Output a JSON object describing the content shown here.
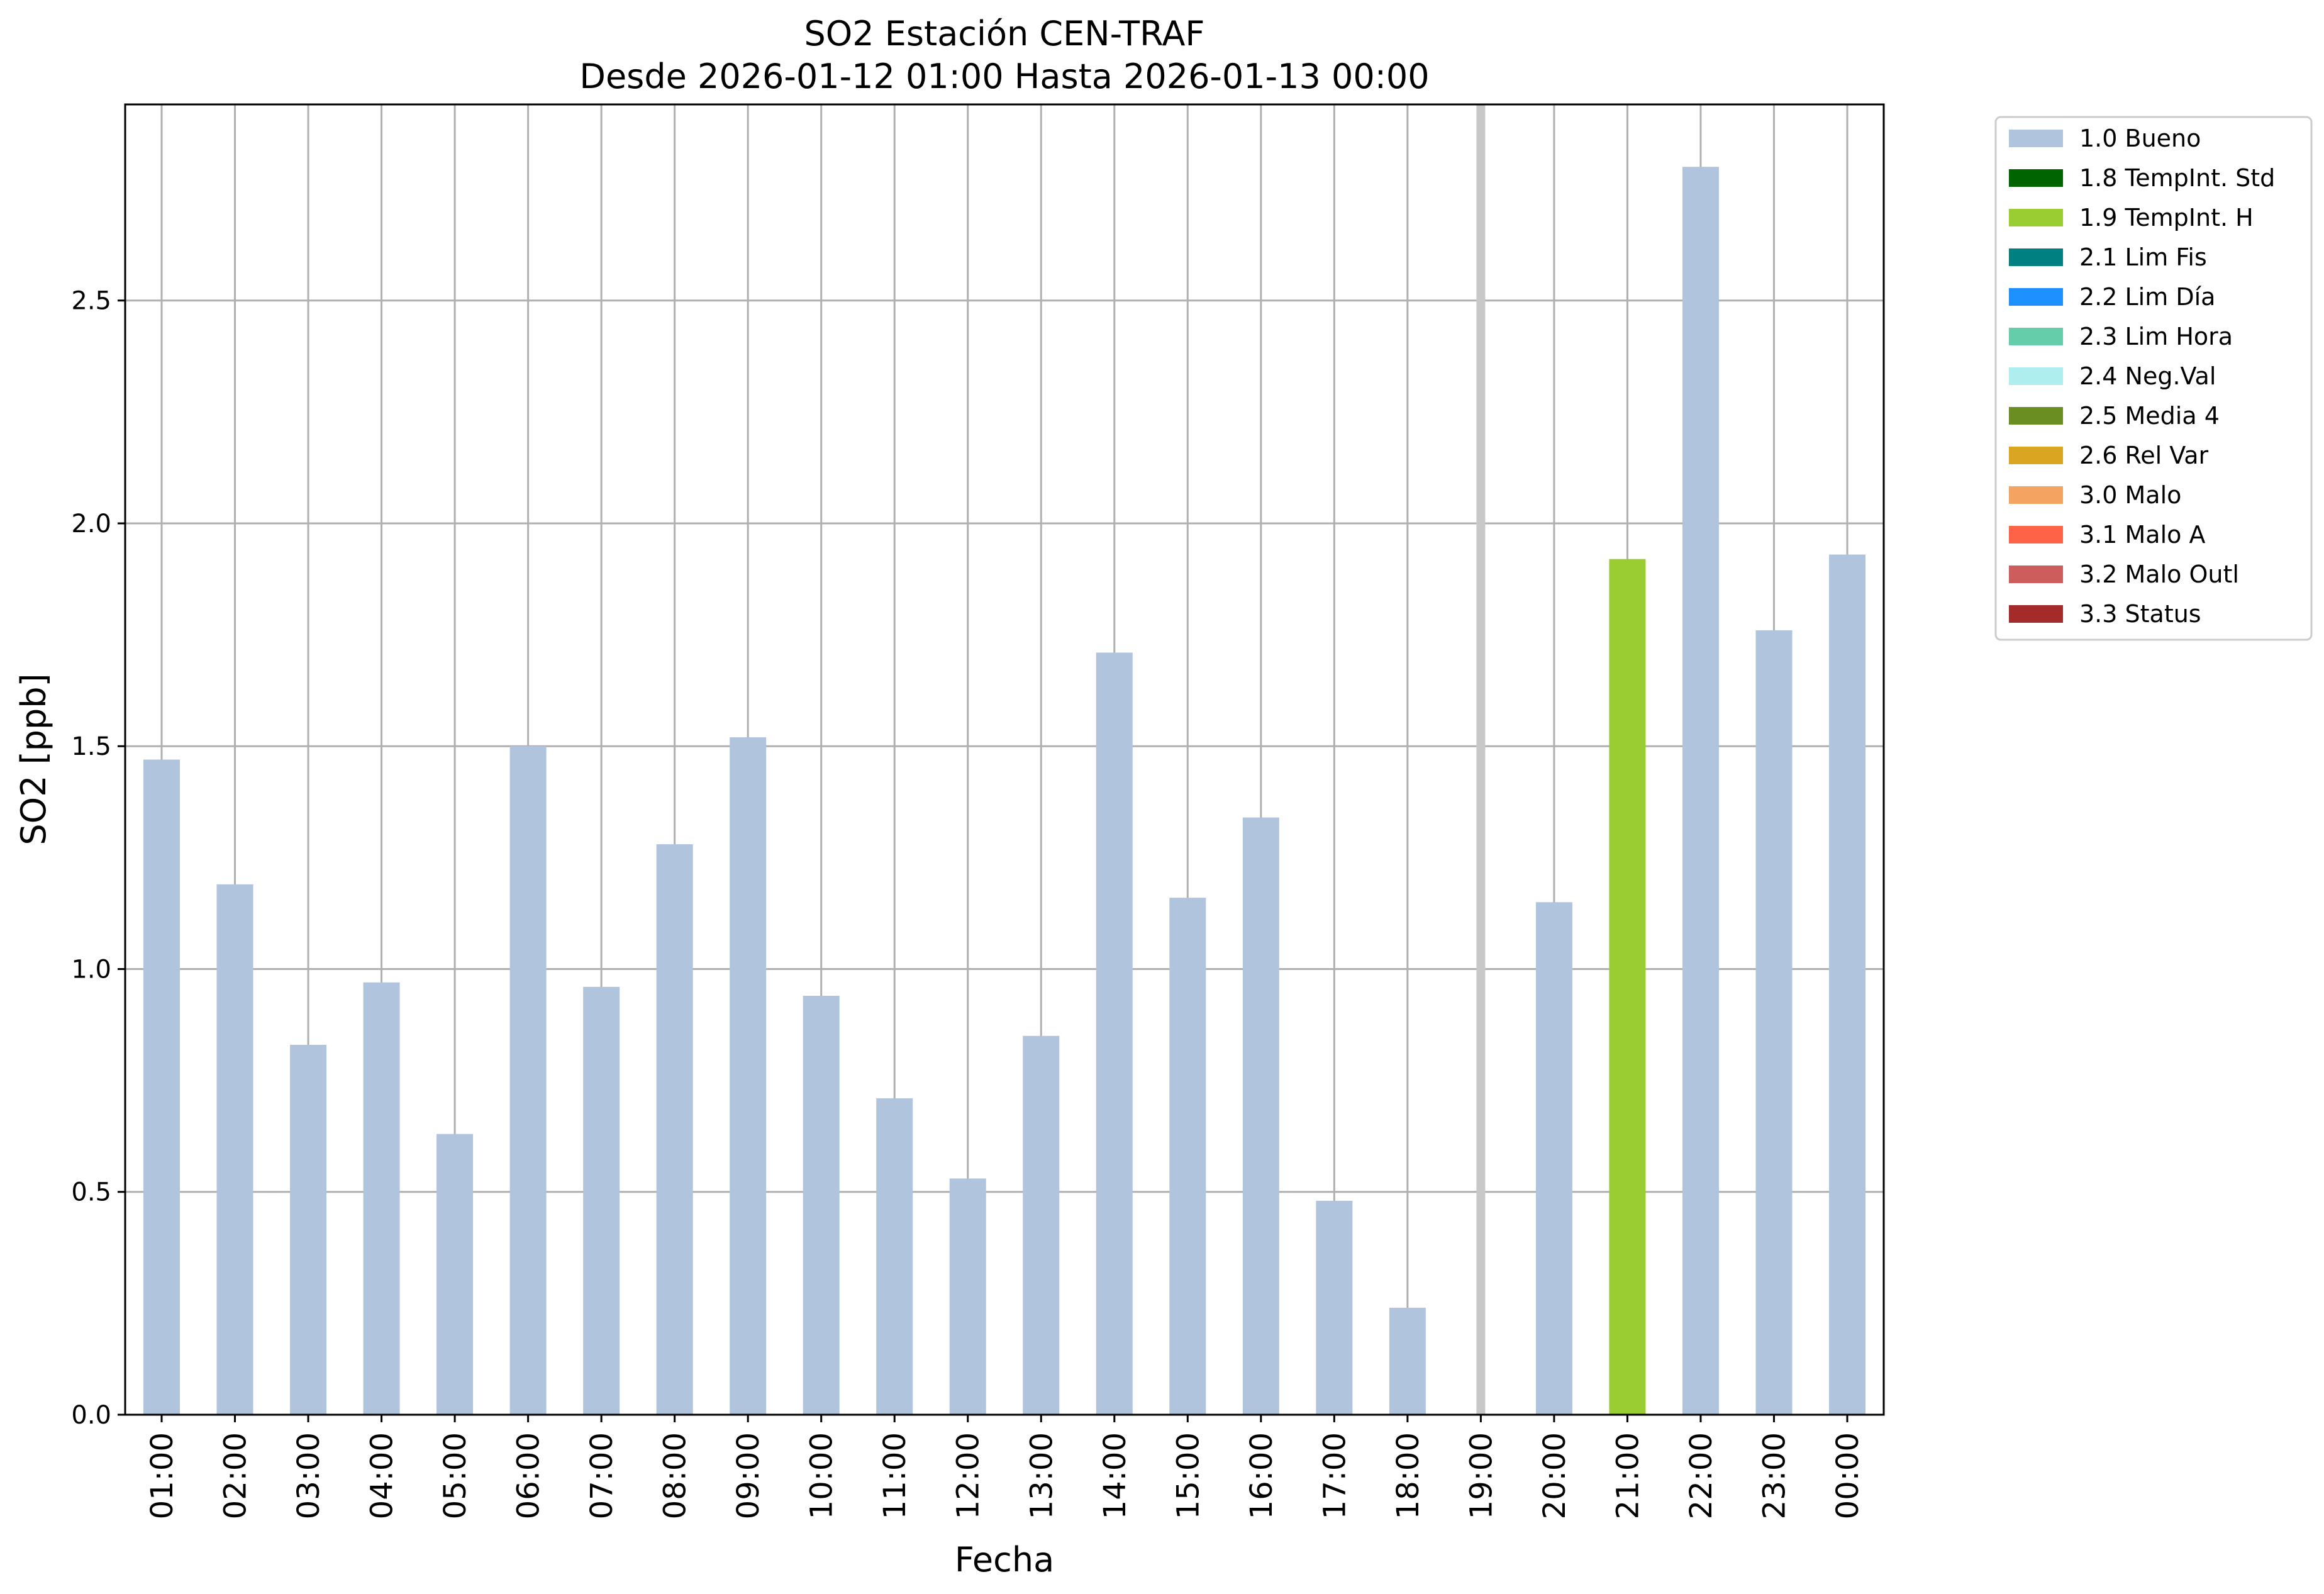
{
  "chart_data": {
    "type": "bar",
    "title": "SO2 Estación CEN-TRAF",
    "subtitle": "Desde 2026-01-12 01:00 Hasta 2026-01-13 00:00",
    "xlabel": "Fecha",
    "ylabel": "SO2 [ppb]",
    "ylim": [
      0,
      2.94
    ],
    "yticks": [
      "0.0",
      "0.5",
      "1.0",
      "1.5",
      "2.0",
      "2.5"
    ],
    "grid": true,
    "legend_position": "outside-right",
    "categories": [
      "01:00",
      "02:00",
      "03:00",
      "04:00",
      "05:00",
      "06:00",
      "07:00",
      "08:00",
      "09:00",
      "10:00",
      "11:00",
      "12:00",
      "13:00",
      "14:00",
      "15:00",
      "16:00",
      "17:00",
      "18:00",
      "19:00",
      "20:00",
      "21:00",
      "22:00",
      "23:00",
      "00:00"
    ],
    "values": [
      1.47,
      1.19,
      0.83,
      0.97,
      0.63,
      1.5,
      0.96,
      1.28,
      1.52,
      0.94,
      0.71,
      0.53,
      0.85,
      1.71,
      1.16,
      1.34,
      0.48,
      0.24,
      null,
      1.15,
      1.92,
      2.8,
      1.76,
      1.93
    ],
    "flags": [
      "1.0 Bueno",
      "1.0 Bueno",
      "1.0 Bueno",
      "1.0 Bueno",
      "1.0 Bueno",
      "1.0 Bueno",
      "1.0 Bueno",
      "1.0 Bueno",
      "1.0 Bueno",
      "1.0 Bueno",
      "1.0 Bueno",
      "1.0 Bueno",
      "1.0 Bueno",
      "1.0 Bueno",
      "1.0 Bueno",
      "1.0 Bueno",
      "1.0 Bueno",
      "1.0 Bueno",
      null,
      "1.0 Bueno",
      "1.9 TempInt. H",
      "1.0 Bueno",
      "1.0 Bueno",
      "1.0 Bueno"
    ],
    "missing_marker_category": "19:00",
    "missing_marker_color": "#c8c8c8",
    "legend": [
      {
        "label": "1.0 Bueno",
        "color": "#b0c4de"
      },
      {
        "label": "1.8 TempInt. Std",
        "color": "#006400"
      },
      {
        "label": "1.9 TempInt. H",
        "color": "#9acd32"
      },
      {
        "label": "2.1 Lim Fis",
        "color": "#008080"
      },
      {
        "label": "2.2 Lim Día",
        "color": "#1e90ff"
      },
      {
        "label": "2.3 Lim Hora",
        "color": "#66cdaa"
      },
      {
        "label": "2.4 Neg.Val",
        "color": "#afeeee"
      },
      {
        "label": "2.5 Media 4",
        "color": "#6b8e23"
      },
      {
        "label": "2.6 Rel Var",
        "color": "#daa520"
      },
      {
        "label": "3.0 Malo",
        "color": "#f4a460"
      },
      {
        "label": "3.1 Malo A",
        "color": "#ff6347"
      },
      {
        "label": "3.2 Malo Outl",
        "color": "#cd5c5c"
      },
      {
        "label": "3.3 Status",
        "color": "#a52a2a"
      }
    ]
  }
}
